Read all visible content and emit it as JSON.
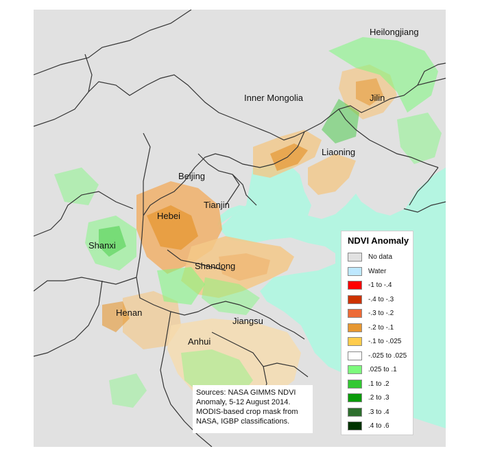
{
  "labels": {
    "heilongjiang": "Heilongjiang",
    "inner_mongolia": "Inner Mongolia",
    "jilin": "Jilin",
    "liaoning": "Liaoning",
    "beijing": "Beijing",
    "tianjin": "Tianjin",
    "hebei": "Hebei",
    "shanxi": "Shanxi",
    "shandong": "Shandong",
    "henan": "Henan",
    "jiangsu": "Jiangsu",
    "anhui": "Anhui"
  },
  "legend": {
    "title": "NDVI Anomaly",
    "items": [
      {
        "label": "No data",
        "color": "#e1e1e1"
      },
      {
        "label": "Water",
        "color": "#bee8ff"
      },
      {
        "label": "-1 to -.4",
        "color": "#ff0000"
      },
      {
        "label": "-.4 to -.3",
        "color": "#cc3300"
      },
      {
        "label": "-.3 to -.2",
        "color": "#ed6a36"
      },
      {
        "label": "-.2 to -.1",
        "color": "#e69732"
      },
      {
        "label": "-.1 to -.025",
        "color": "#ffcc4d"
      },
      {
        "label": "-.025 to .025",
        "color": "#ffffff"
      },
      {
        "label": ".025 to .1",
        "color": "#7dfa7d"
      },
      {
        "label": ".1 to .2",
        "color": "#32c832"
      },
      {
        "label": ".2 to .3",
        "color": "#0a9b0a"
      },
      {
        "label": ".3 to .4",
        "color": "#2d6e2d"
      },
      {
        "label": ".4 to .6",
        "color": "#003300"
      }
    ]
  },
  "source": {
    "lines": [
      "Sources: NASA GIMMS NDVI",
      "Anomaly, 5-12 August 2014.",
      "MODIS-based crop mask from",
      "NASA, IGBP classifications."
    ]
  },
  "colors": {
    "no_data": "#e1e1e1",
    "sea": "#b4f5e1",
    "boundary": "#333333"
  }
}
